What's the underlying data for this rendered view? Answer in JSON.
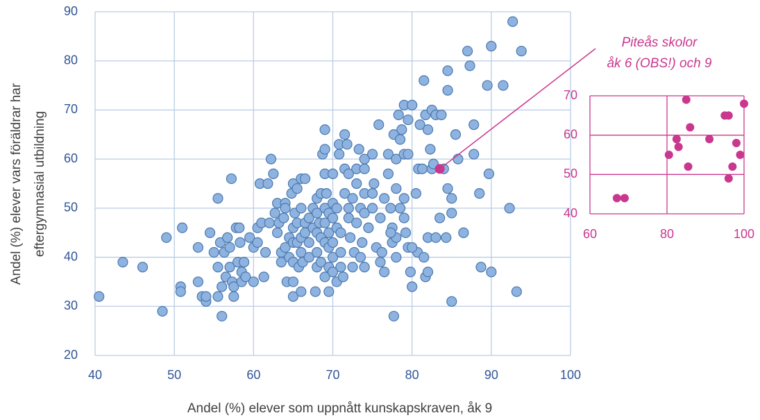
{
  "chart_data": [
    {
      "type": "scatter",
      "xlabel": "Andel (%) elever som uppnått kunskapskraven, åk 9",
      "ylabel": [
        "Andel (%) elever vars föräldrar har",
        "eftergymnasial utbildning"
      ],
      "annotation": [
        "Piteås skolor",
        "åk 6 (OBS!) och 9"
      ],
      "xlim": [
        40,
        100
      ],
      "ylim": [
        20,
        90
      ],
      "xticks": [
        40,
        50,
        60,
        70,
        80,
        90,
        100
      ],
      "yticks": [
        20,
        30,
        40,
        50,
        60,
        70,
        80,
        90
      ],
      "grid": true,
      "series": [
        {
          "color": "#8fb3e0",
          "edgecolor": "#4a78ad",
          "x": [
            40.5,
            43.5,
            46,
            48.5,
            49,
            50.8,
            50.8,
            51,
            53,
            53,
            53.5,
            54,
            54,
            54.5,
            55,
            55.5,
            55.5,
            55.5,
            55.8,
            56,
            56,
            56.3,
            56.5,
            56.7,
            57,
            57,
            57.2,
            57.3,
            57.5,
            57.5,
            57.8,
            58,
            58.2,
            58.3,
            58.5,
            58.5,
            58.8,
            59,
            59.5,
            60,
            60,
            60.5,
            60.5,
            60.8,
            61,
            61.3,
            61.5,
            61.8,
            62,
            62.2,
            62.5,
            62.7,
            63,
            63,
            63.2,
            63.5,
            63.5,
            63.8,
            64,
            64,
            64,
            64.2,
            64.5,
            64.5,
            64.8,
            65,
            65,
            65,
            65,
            65,
            65,
            65.2,
            65.5,
            65.5,
            65.5,
            65.7,
            66,
            66,
            66,
            66,
            66,
            66.2,
            66.5,
            66.5,
            66.5,
            67,
            67,
            67,
            67.5,
            67.5,
            67.8,
            68,
            68,
            68,
            68,
            68,
            68.3,
            68.5,
            68.5,
            68.5,
            68.7,
            69,
            69,
            69,
            69,
            69,
            69,
            69,
            69.2,
            69.5,
            69.5,
            69.5,
            69.5,
            69.5,
            70,
            70,
            70,
            70,
            70,
            70,
            70.5,
            70.5,
            70.5,
            70.8,
            70.8,
            71,
            71,
            71,
            71.3,
            71.5,
            71.5,
            71.5,
            71.8,
            72,
            72,
            72,
            72.2,
            72.5,
            72.5,
            72.7,
            73,
            73,
            73,
            73.3,
            73.5,
            73.5,
            73.7,
            74,
            74,
            74,
            74,
            74,
            74.5,
            75,
            75,
            75,
            75.2,
            75.5,
            75.8,
            76,
            76,
            76.2,
            76.5,
            76.5,
            77,
            77,
            77.3,
            77.5,
            77.5,
            77.7,
            77.7,
            78,
            78,
            78,
            78,
            78.3,
            78.5,
            78.5,
            78.7,
            79,
            79,
            79,
            79,
            79.2,
            79.5,
            79.5,
            79.5,
            79.8,
            80,
            80,
            80.5,
            80.7,
            80.8,
            81,
            81.3,
            81.5,
            81.5,
            81.7,
            81.7,
            82,
            82,
            82,
            82.3,
            82.5,
            82.5,
            82.7,
            83,
            83.5,
            83.7,
            84,
            84.3,
            84.5,
            84.5,
            84.5,
            85,
            85,
            85,
            85.5,
            85.8,
            86.5,
            87,
            87.3,
            87.8,
            87.8,
            88.5,
            88.7,
            89.5,
            89.7,
            90,
            90,
            91.5,
            92.3,
            92.7,
            93.2,
            93.8,
            80,
            77.3,
            83
          ],
          "values": [
            32,
            39,
            38,
            29,
            44,
            34,
            33,
            46,
            42,
            35,
            32,
            31,
            32,
            45,
            41,
            52,
            38,
            32,
            43,
            34,
            28,
            41,
            36,
            44,
            42,
            38,
            56,
            35,
            32,
            34,
            46,
            39,
            46,
            43,
            37,
            35,
            39,
            36,
            44,
            42,
            35,
            46,
            43,
            55,
            47,
            36,
            41,
            55,
            47,
            60,
            57,
            49,
            51,
            45,
            47,
            41,
            39,
            48,
            51,
            42,
            50,
            35,
            44,
            40,
            53,
            55,
            46,
            35,
            43,
            39,
            32,
            49,
            54,
            47,
            43,
            38,
            56,
            50,
            44,
            41,
            33,
            39,
            56,
            47,
            45,
            48,
            43,
            40,
            50,
            46,
            33,
            52,
            49,
            45,
            41,
            38,
            47,
            53,
            44,
            39,
            61,
            62,
            57,
            66,
            50,
            47,
            43,
            36,
            53,
            49,
            45,
            42,
            38,
            33,
            57,
            51,
            48,
            43,
            40,
            37,
            50,
            46,
            35,
            61,
            63,
            45,
            41,
            38,
            36,
            65,
            58,
            53,
            63,
            57,
            48,
            50,
            44,
            52,
            38,
            41,
            58,
            55,
            47,
            62,
            50,
            40,
            43,
            60,
            58,
            53,
            49,
            38,
            46,
            61,
            53,
            50,
            55,
            42,
            67,
            48,
            39,
            41,
            52,
            37,
            61,
            57,
            50,
            46,
            43,
            65,
            28,
            60,
            54,
            44,
            40,
            69,
            64,
            50,
            66,
            71,
            61,
            52,
            48,
            45,
            68,
            61,
            42,
            37,
            71,
            34,
            53,
            41,
            58,
            67,
            58,
            76,
            40,
            69,
            36,
            66,
            44,
            37,
            62,
            70,
            58,
            59,
            69,
            48,
            69,
            58,
            44,
            78,
            74,
            54,
            52,
            49,
            31,
            65,
            60,
            45,
            82,
            79,
            67,
            61,
            53,
            38,
            75,
            57,
            83,
            37,
            75,
            50,
            88,
            33,
            82,
            42,
            45,
            44
          ]
        },
        {
          "color": "#c9378e",
          "x": [
            83.5
          ],
          "values": [
            58
          ]
        }
      ]
    },
    {
      "type": "scatter",
      "xlim": [
        60,
        100
      ],
      "ylim": [
        40,
        70
      ],
      "xticks": [
        60,
        80,
        100
      ],
      "yticks": [
        40,
        50,
        60,
        70
      ],
      "grid": true,
      "series": [
        {
          "color": "#c9378e",
          "x": [
            67,
            69,
            80.5,
            82.5,
            83,
            85,
            86,
            85.5,
            91,
            95,
            96,
            96,
            97,
            98,
            99,
            100
          ],
          "values": [
            44,
            44,
            55,
            59,
            57,
            69,
            62,
            52,
            59,
            65,
            65,
            49,
            52,
            58,
            55,
            68
          ]
        }
      ]
    }
  ]
}
